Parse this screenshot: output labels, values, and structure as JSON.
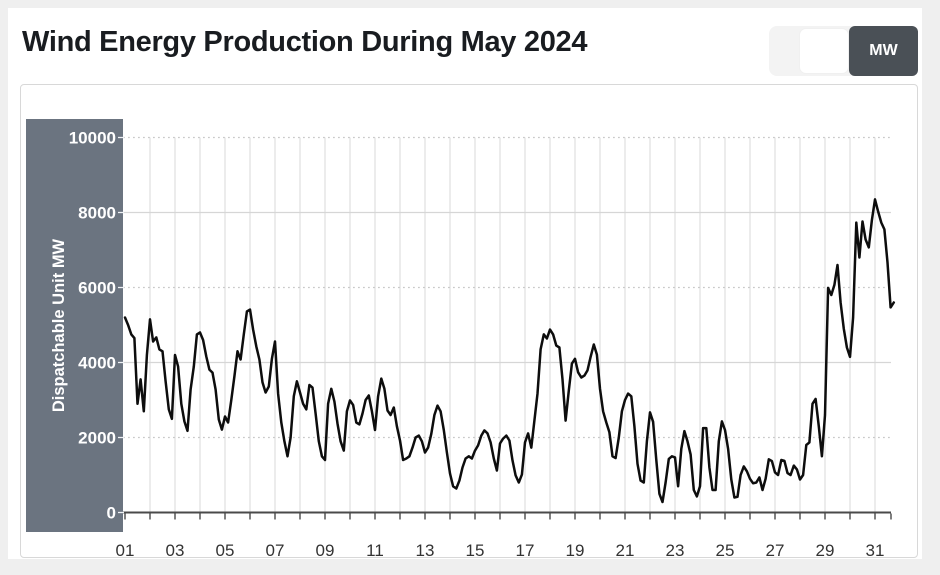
{
  "page": {
    "title": "Wind Energy Production During May 2024",
    "unit_toggle": {
      "selected_label": "MW"
    }
  },
  "colors": {
    "page_bg": "#efefef",
    "sheet_bg": "#ffffff",
    "card_border": "#d8d8d8",
    "title_text": "#191c20",
    "button_bg": "#4a5056",
    "button_text": "#ffffff",
    "axis_panel_bg": "#6b7480",
    "axis_panel_text": "#ffffff",
    "grid_vertical": "#dfdfdf",
    "grid_solid": "#d6d6d6",
    "grid_dotted": "#c9c9c9",
    "axis_line": "#4a4a4a",
    "x_tick_label": "#333333",
    "series_line": "#0d0d0d"
  },
  "chart_data": {
    "type": "line",
    "title": "Wind Energy Production During May 2024",
    "xlabel": "",
    "ylabel": "Dispatchable Unit MW",
    "ylim": [
      0,
      10000
    ],
    "y_ticks": [
      0,
      2000,
      4000,
      6000,
      8000,
      10000
    ],
    "y_gridlines": [
      {
        "value": 2000,
        "style": "dotted"
      },
      {
        "value": 4000,
        "style": "solid"
      },
      {
        "value": 6000,
        "style": "dotted"
      },
      {
        "value": 8000,
        "style": "solid"
      },
      {
        "value": 10000,
        "style": "dotted"
      }
    ],
    "x_domain_days": [
      1,
      32
    ],
    "x_minor_tick_every_days": 1,
    "x_tick_labels": [
      {
        "day": 1,
        "label": "01"
      },
      {
        "day": 3,
        "label": "03"
      },
      {
        "day": 5,
        "label": "05"
      },
      {
        "day": 7,
        "label": "07"
      },
      {
        "day": 9,
        "label": "09"
      },
      {
        "day": 11,
        "label": "11"
      },
      {
        "day": 13,
        "label": "13"
      },
      {
        "day": 15,
        "label": "15"
      },
      {
        "day": 17,
        "label": "17"
      },
      {
        "day": 19,
        "label": "19"
      },
      {
        "day": 21,
        "label": "21"
      },
      {
        "day": 23,
        "label": "23"
      },
      {
        "day": 25,
        "label": "25"
      },
      {
        "day": 27,
        "label": "27"
      },
      {
        "day": 29,
        "label": "29"
      },
      {
        "day": 31,
        "label": "31"
      }
    ],
    "grid": true,
    "legend": false,
    "series": [
      {
        "name": "Wind energy production",
        "unit": "MW",
        "color": "#0d0d0d",
        "x_start_day": 1,
        "x_step_days": 0.125,
        "values": [
          5200,
          5000,
          4750,
          4650,
          2900,
          3550,
          2700,
          4200,
          5150,
          4560,
          4670,
          4350,
          4300,
          3500,
          2750,
          2500,
          4200,
          3890,
          2900,
          2430,
          2180,
          3280,
          3890,
          4750,
          4800,
          4600,
          4160,
          3810,
          3730,
          3280,
          2480,
          2210,
          2560,
          2400,
          3000,
          3630,
          4300,
          4080,
          4750,
          5360,
          5410,
          4880,
          4430,
          4080,
          3470,
          3200,
          3360,
          4100,
          4560,
          3170,
          2400,
          1900,
          1500,
          2000,
          3100,
          3500,
          3200,
          2900,
          2750,
          3400,
          3330,
          2640,
          1900,
          1500,
          1400,
          2900,
          3300,
          2960,
          2370,
          1900,
          1650,
          2700,
          2990,
          2870,
          2400,
          2350,
          2640,
          3000,
          3120,
          2700,
          2200,
          3100,
          3570,
          3300,
          2720,
          2600,
          2800,
          2300,
          1920,
          1400,
          1440,
          1500,
          1730,
          2000,
          2050,
          1900,
          1600,
          1730,
          2100,
          2600,
          2850,
          2700,
          2200,
          1600,
          1040,
          700,
          640,
          850,
          1200,
          1440,
          1500,
          1440,
          1650,
          1790,
          2050,
          2190,
          2110,
          1870,
          1440,
          1120,
          1840,
          1970,
          2050,
          1920,
          1390,
          990,
          800,
          1010,
          1870,
          2110,
          1730,
          2450,
          3170,
          4350,
          4750,
          4640,
          4880,
          4750,
          4450,
          4400,
          3550,
          2450,
          3250,
          3970,
          4100,
          3740,
          3600,
          3650,
          3790,
          4150,
          4480,
          4210,
          3300,
          2700,
          2400,
          2140,
          1500,
          1450,
          2000,
          2700,
          3000,
          3170,
          3100,
          2300,
          1300,
          850,
          800,
          1900,
          2670,
          2420,
          1400,
          500,
          280,
          800,
          1430,
          1500,
          1470,
          700,
          1700,
          2170,
          1900,
          1550,
          600,
          430,
          700,
          2250,
          2250,
          1200,
          600,
          600,
          1900,
          2430,
          2200,
          1700,
          880,
          400,
          420,
          1000,
          1230,
          1100,
          900,
          780,
          800,
          935,
          600,
          900,
          1420,
          1370,
          1070,
          1000,
          1400,
          1380,
          1050,
          1000,
          1250,
          1150,
          880,
          1000,
          1800,
          1870,
          2900,
          3030,
          2300,
          1500,
          2600,
          5990,
          5800,
          6070,
          6600,
          5600,
          4900,
          4400,
          4150,
          5200,
          7730,
          6800,
          7760,
          7280,
          7070,
          7800,
          8350,
          8030,
          7730,
          7550,
          6670,
          5470,
          5600
        ]
      }
    ]
  }
}
